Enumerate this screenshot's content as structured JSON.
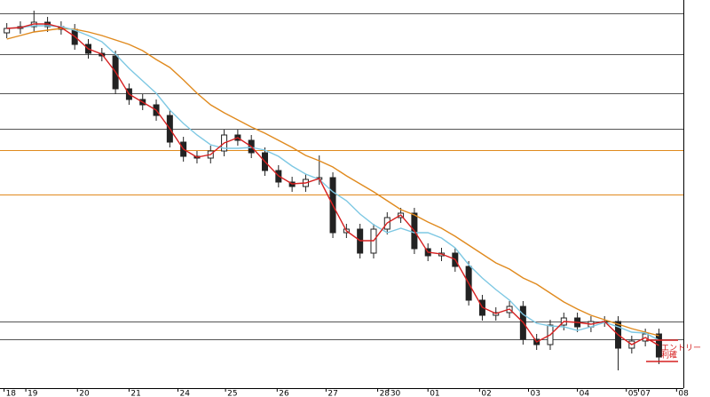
{
  "chart_data": {
    "type": "candlestick",
    "xlim": [
      -0.5,
      49.8
    ],
    "ylim": [
      0,
      437
    ],
    "xticks": [
      {
        "value": -0.2,
        "label": "18"
      },
      {
        "value": 1.4,
        "label": "19"
      },
      {
        "value": 5.2,
        "label": "20"
      },
      {
        "value": 9,
        "label": "21"
      },
      {
        "value": 12.6,
        "label": "24"
      },
      {
        "value": 16.1,
        "label": "25"
      },
      {
        "value": 19.9,
        "label": "26"
      },
      {
        "value": 23.5,
        "label": "27"
      },
      {
        "value": 27.3,
        "label": "28"
      },
      {
        "value": 28.1,
        "label": "30"
      },
      {
        "value": 31,
        "label": "01"
      },
      {
        "value": 34.8,
        "label": "02"
      },
      {
        "value": 38.4,
        "label": "03"
      },
      {
        "value": 42,
        "label": "04"
      },
      {
        "value": 45.6,
        "label": "05"
      },
      {
        "value": 46.5,
        "label": "07"
      },
      {
        "value": 49.3,
        "label": "08"
      }
    ],
    "open": [
      400,
      405,
      407,
      412,
      407,
      404,
      387,
      377,
      374,
      337,
      325,
      319,
      307,
      277,
      261,
      259,
      267,
      285,
      279,
      265,
      245,
      232,
      227,
      235,
      237,
      175,
      179,
      152,
      179,
      192,
      197,
      157,
      149,
      152,
      137,
      99,
      82,
      85,
      92,
      55,
      49,
      71,
      79,
      69,
      75,
      75,
      45,
      53,
      61
    ],
    "high": [
      411,
      413,
      425,
      418,
      413,
      410,
      393,
      383,
      380,
      343,
      331,
      325,
      313,
      283,
      267,
      273,
      291,
      291,
      285,
      271,
      251,
      238,
      241,
      262,
      243,
      185,
      185,
      185,
      198,
      203,
      203,
      163,
      158,
      158,
      143,
      105,
      91,
      98,
      98,
      61,
      77,
      85,
      85,
      81,
      81,
      81,
      59,
      67,
      67
    ],
    "low": [
      394,
      399,
      401,
      401,
      398,
      381,
      371,
      368,
      331,
      319,
      313,
      301,
      271,
      255,
      253,
      253,
      261,
      273,
      259,
      239,
      226,
      221,
      221,
      229,
      169,
      169,
      146,
      146,
      173,
      186,
      151,
      143,
      143,
      131,
      93,
      76,
      76,
      79,
      49,
      43,
      43,
      65,
      63,
      63,
      69,
      20,
      39,
      47,
      27
    ],
    "close": [
      405,
      407,
      412,
      407,
      404,
      387,
      377,
      374,
      337,
      325,
      319,
      307,
      277,
      261,
      259,
      267,
      285,
      279,
      265,
      245,
      232,
      227,
      235,
      237,
      175,
      179,
      152,
      179,
      192,
      197,
      157,
      149,
      152,
      137,
      99,
      82,
      85,
      92,
      55,
      49,
      71,
      79,
      69,
      75,
      75,
      45,
      53,
      61,
      35
    ],
    "series": [
      {
        "color": "#e08a1e",
        "values": [
          393,
          397,
          401,
          403,
          405,
          404,
          401,
          397,
          392,
          387,
          380,
          370,
          361,
          347,
          332,
          319,
          310,
          302,
          294,
          287,
          279,
          271,
          262,
          256,
          249,
          239,
          230,
          221,
          211,
          201,
          195,
          187,
          180,
          171,
          161,
          151,
          141,
          134,
          124,
          117,
          107,
          97,
          89,
          82,
          77,
          72,
          67,
          63,
          59
        ]
      },
      {
        "color": "#7ec8e3",
        "values": [
          405,
          406,
          408,
          408,
          407,
          403,
          397,
          390,
          376,
          360,
          346,
          332,
          313,
          298,
          285,
          274,
          270,
          270,
          271,
          268,
          261,
          250,
          241,
          235,
          221,
          211,
          196,
          184,
          175,
          180,
          175,
          175,
          169,
          158,
          139,
          124,
          111,
          99,
          83,
          73,
          70,
          69,
          65,
          69,
          74,
          69,
          63,
          62,
          54
        ]
      },
      {
        "color": "#d62020",
        "values": [
          405,
          406,
          410,
          410,
          406,
          396,
          382,
          376,
          356,
          331,
          322,
          313,
          292,
          269,
          260,
          263,
          276,
          282,
          272,
          255,
          239,
          230,
          231,
          236,
          206,
          177,
          166,
          166,
          186,
          195,
          177,
          153,
          151,
          145,
          118,
          91,
          84,
          89,
          74,
          52,
          60,
          75,
          74,
          72,
          75,
          60,
          49,
          57,
          48
        ]
      }
    ],
    "levels": [
      {
        "value": 422,
        "color": "#555555"
      },
      {
        "value": 376,
        "color": "#555555"
      },
      {
        "value": 332,
        "color": "#555555"
      },
      {
        "value": 292,
        "color": "#555555"
      },
      {
        "value": 268,
        "color": "#e08a1e"
      },
      {
        "value": 218,
        "color": "#e08a1e"
      },
      {
        "value": 75,
        "color": "#555555"
      },
      {
        "value": 55,
        "color": "#555555"
      }
    ],
    "annotations": [
      {
        "text": "エントリー",
        "value": 54,
        "color": "#d62020"
      },
      {
        "text": "利確",
        "value": 30,
        "color": "#d62020"
      }
    ]
  }
}
